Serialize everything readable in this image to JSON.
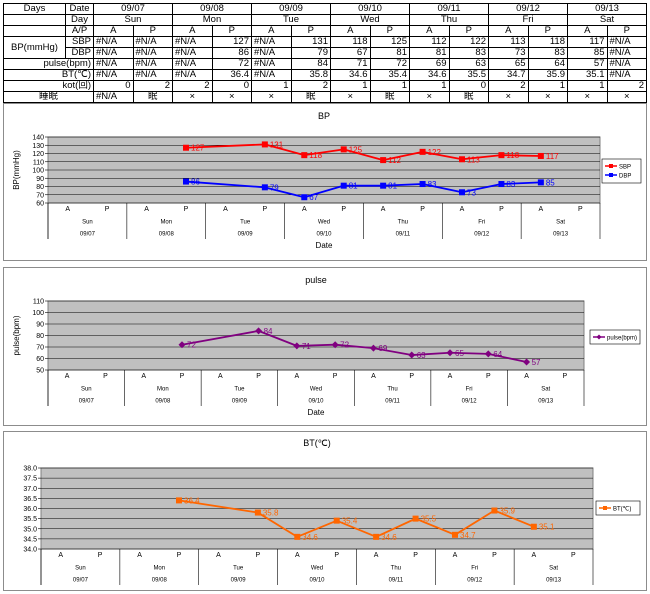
{
  "table": {
    "days_label": "Days",
    "date_label": "Date",
    "day_label": "Day",
    "ap_label": "A/P",
    "bp_label": "BP(mmHg)",
    "dates": [
      "09/07",
      "09/08",
      "09/09",
      "09/10",
      "09/11",
      "09/12",
      "09/13"
    ],
    "days": [
      "Sun",
      "Mon",
      "Tue",
      "Wed",
      "Thu",
      "Fri",
      "Sat"
    ],
    "ap": [
      "A",
      "P",
      "A",
      "P",
      "A",
      "P",
      "A",
      "P",
      "A",
      "P",
      "A",
      "P",
      "A",
      "P"
    ],
    "rows": [
      {
        "label": "SBP",
        "values": [
          "#N/A",
          "#N/A",
          "#N/A",
          "127",
          "#N/A",
          "131",
          "118",
          "125",
          "112",
          "122",
          "113",
          "118",
          "117",
          "#N/A"
        ]
      },
      {
        "label": "DBP",
        "values": [
          "#N/A",
          "#N/A",
          "#N/A",
          "86",
          "#N/A",
          "79",
          "67",
          "81",
          "81",
          "83",
          "73",
          "83",
          "85",
          "#N/A"
        ]
      },
      {
        "label": "pulse(bpm)",
        "values": [
          "#N/A",
          "#N/A",
          "#N/A",
          "72",
          "#N/A",
          "84",
          "71",
          "72",
          "69",
          "63",
          "65",
          "64",
          "57",
          "#N/A"
        ]
      },
      {
        "label": "BT(℃)",
        "values": [
          "#N/A",
          "#N/A",
          "#N/A",
          "36.4",
          "#N/A",
          "35.8",
          "34.6",
          "35.4",
          "34.6",
          "35.5",
          "34.7",
          "35.9",
          "35.1",
          "#N/A"
        ]
      },
      {
        "label": "kot(回)",
        "values": [
          "0",
          "2",
          "2",
          "0",
          "1",
          "2",
          "1",
          "1",
          "1",
          "0",
          "2",
          "1",
          "1",
          "2"
        ]
      },
      {
        "label": "睡眠",
        "values": [
          "#N/A",
          "眠",
          "×",
          "×",
          "×",
          "眠",
          "×",
          "眠",
          "×",
          "眠",
          "×",
          "×",
          "×",
          "×"
        ]
      }
    ]
  },
  "chart_data": [
    {
      "type": "line",
      "title": "BP",
      "xlabel": "Date",
      "ylabel": "BP(mmHg)",
      "ylim": [
        60,
        140
      ],
      "yticks": [
        60,
        70,
        80,
        90,
        100,
        110,
        120,
        130,
        140
      ],
      "ytick_labels": [
        "60",
        "70",
        "80",
        "90",
        "100",
        "110",
        "120",
        "130",
        "140"
      ],
      "x_slots": [
        "A",
        "P",
        "A",
        "P",
        "A",
        "P",
        "A",
        "P",
        "A",
        "P",
        "A",
        "P",
        "A",
        "P"
      ],
      "x_days": [
        "Sun",
        "Mon",
        "Tue",
        "Wed",
        "Thu",
        "Fri",
        "Sat"
      ],
      "x_dates": [
        "09/07",
        "09/08",
        "09/09",
        "09/10",
        "09/11",
        "09/12",
        "09/13"
      ],
      "grid": true,
      "legend": "right",
      "series": [
        {
          "name": "SBP",
          "color": "#ff0000",
          "marker": "square",
          "values": [
            null,
            null,
            null,
            127,
            null,
            131,
            118,
            125,
            112,
            122,
            113,
            118,
            117,
            null
          ],
          "labels": [
            "",
            "",
            "",
            "127",
            "",
            "131",
            "118",
            "125",
            "112",
            "122",
            "113",
            "118",
            "117",
            ""
          ]
        },
        {
          "name": "DBP",
          "color": "#0000ff",
          "marker": "square",
          "values": [
            null,
            null,
            null,
            86,
            null,
            79,
            67,
            81,
            81,
            83,
            73,
            83,
            85,
            null
          ],
          "labels": [
            "",
            "",
            "",
            "86",
            "",
            "79",
            "67",
            "81",
            "81",
            "83",
            "73",
            "83",
            "85",
            ""
          ]
        }
      ]
    },
    {
      "type": "line",
      "title": "pulse",
      "xlabel": "Date",
      "ylabel": "pulse(bpm)",
      "ylim": [
        50,
        110
      ],
      "yticks": [
        50,
        60,
        70,
        80,
        90,
        100,
        110
      ],
      "ytick_labels": [
        "50",
        "60",
        "70",
        "80",
        "90",
        "100",
        "110"
      ],
      "x_slots": [
        "A",
        "P",
        "A",
        "P",
        "A",
        "P",
        "A",
        "P",
        "A",
        "P",
        "A",
        "P",
        "A",
        "P"
      ],
      "x_days": [
        "Sun",
        "Mon",
        "Tue",
        "Wed",
        "Thu",
        "Fri",
        "Sat"
      ],
      "x_dates": [
        "09/07",
        "09/08",
        "09/09",
        "09/10",
        "09/11",
        "09/12",
        "09/13"
      ],
      "grid": true,
      "legend": "right",
      "series": [
        {
          "name": "pulse(bpm)",
          "color": "#800080",
          "marker": "diamond",
          "values": [
            null,
            null,
            null,
            72,
            null,
            84,
            71,
            72,
            69,
            63,
            65,
            64,
            57,
            null
          ],
          "labels": [
            "",
            "",
            "",
            "72",
            "",
            "84",
            "71",
            "72",
            "69",
            "63",
            "65",
            "64",
            "57",
            ""
          ]
        }
      ]
    },
    {
      "type": "line",
      "title": "BT(℃)",
      "xlabel": "",
      "ylabel": "",
      "ylim": [
        34.0,
        38.0
      ],
      "yticks": [
        34.0,
        34.5,
        35.0,
        35.5,
        36.0,
        36.5,
        37.0,
        37.5,
        38.0
      ],
      "ytick_labels": [
        "34.0",
        "34.5",
        "35.0",
        "35.5",
        "36.0",
        "36.5",
        "37.0",
        "37.5",
        "38.0"
      ],
      "x_slots": [
        "A",
        "P",
        "A",
        "P",
        "A",
        "P",
        "A",
        "P",
        "A",
        "P",
        "A",
        "P",
        "A",
        "P"
      ],
      "x_days": [
        "Sun",
        "Mon",
        "Tue",
        "Wed",
        "Thu",
        "Fri",
        "Sat"
      ],
      "x_dates": [
        "09/07",
        "09/08",
        "09/09",
        "09/10",
        "09/11",
        "09/12",
        "09/13"
      ],
      "grid": true,
      "legend": "right",
      "series": [
        {
          "name": "BT(℃)",
          "color": "#ff6600",
          "marker": "square",
          "values": [
            null,
            null,
            null,
            36.4,
            null,
            35.8,
            34.6,
            35.4,
            34.6,
            35.5,
            34.7,
            35.9,
            35.1,
            null
          ],
          "labels": [
            "",
            "",
            "",
            "36.4",
            "",
            "35.8",
            "34.6",
            "35.4",
            "34.6",
            "35.5",
            "34.7",
            "35.9",
            "35.1",
            ""
          ]
        }
      ]
    }
  ]
}
